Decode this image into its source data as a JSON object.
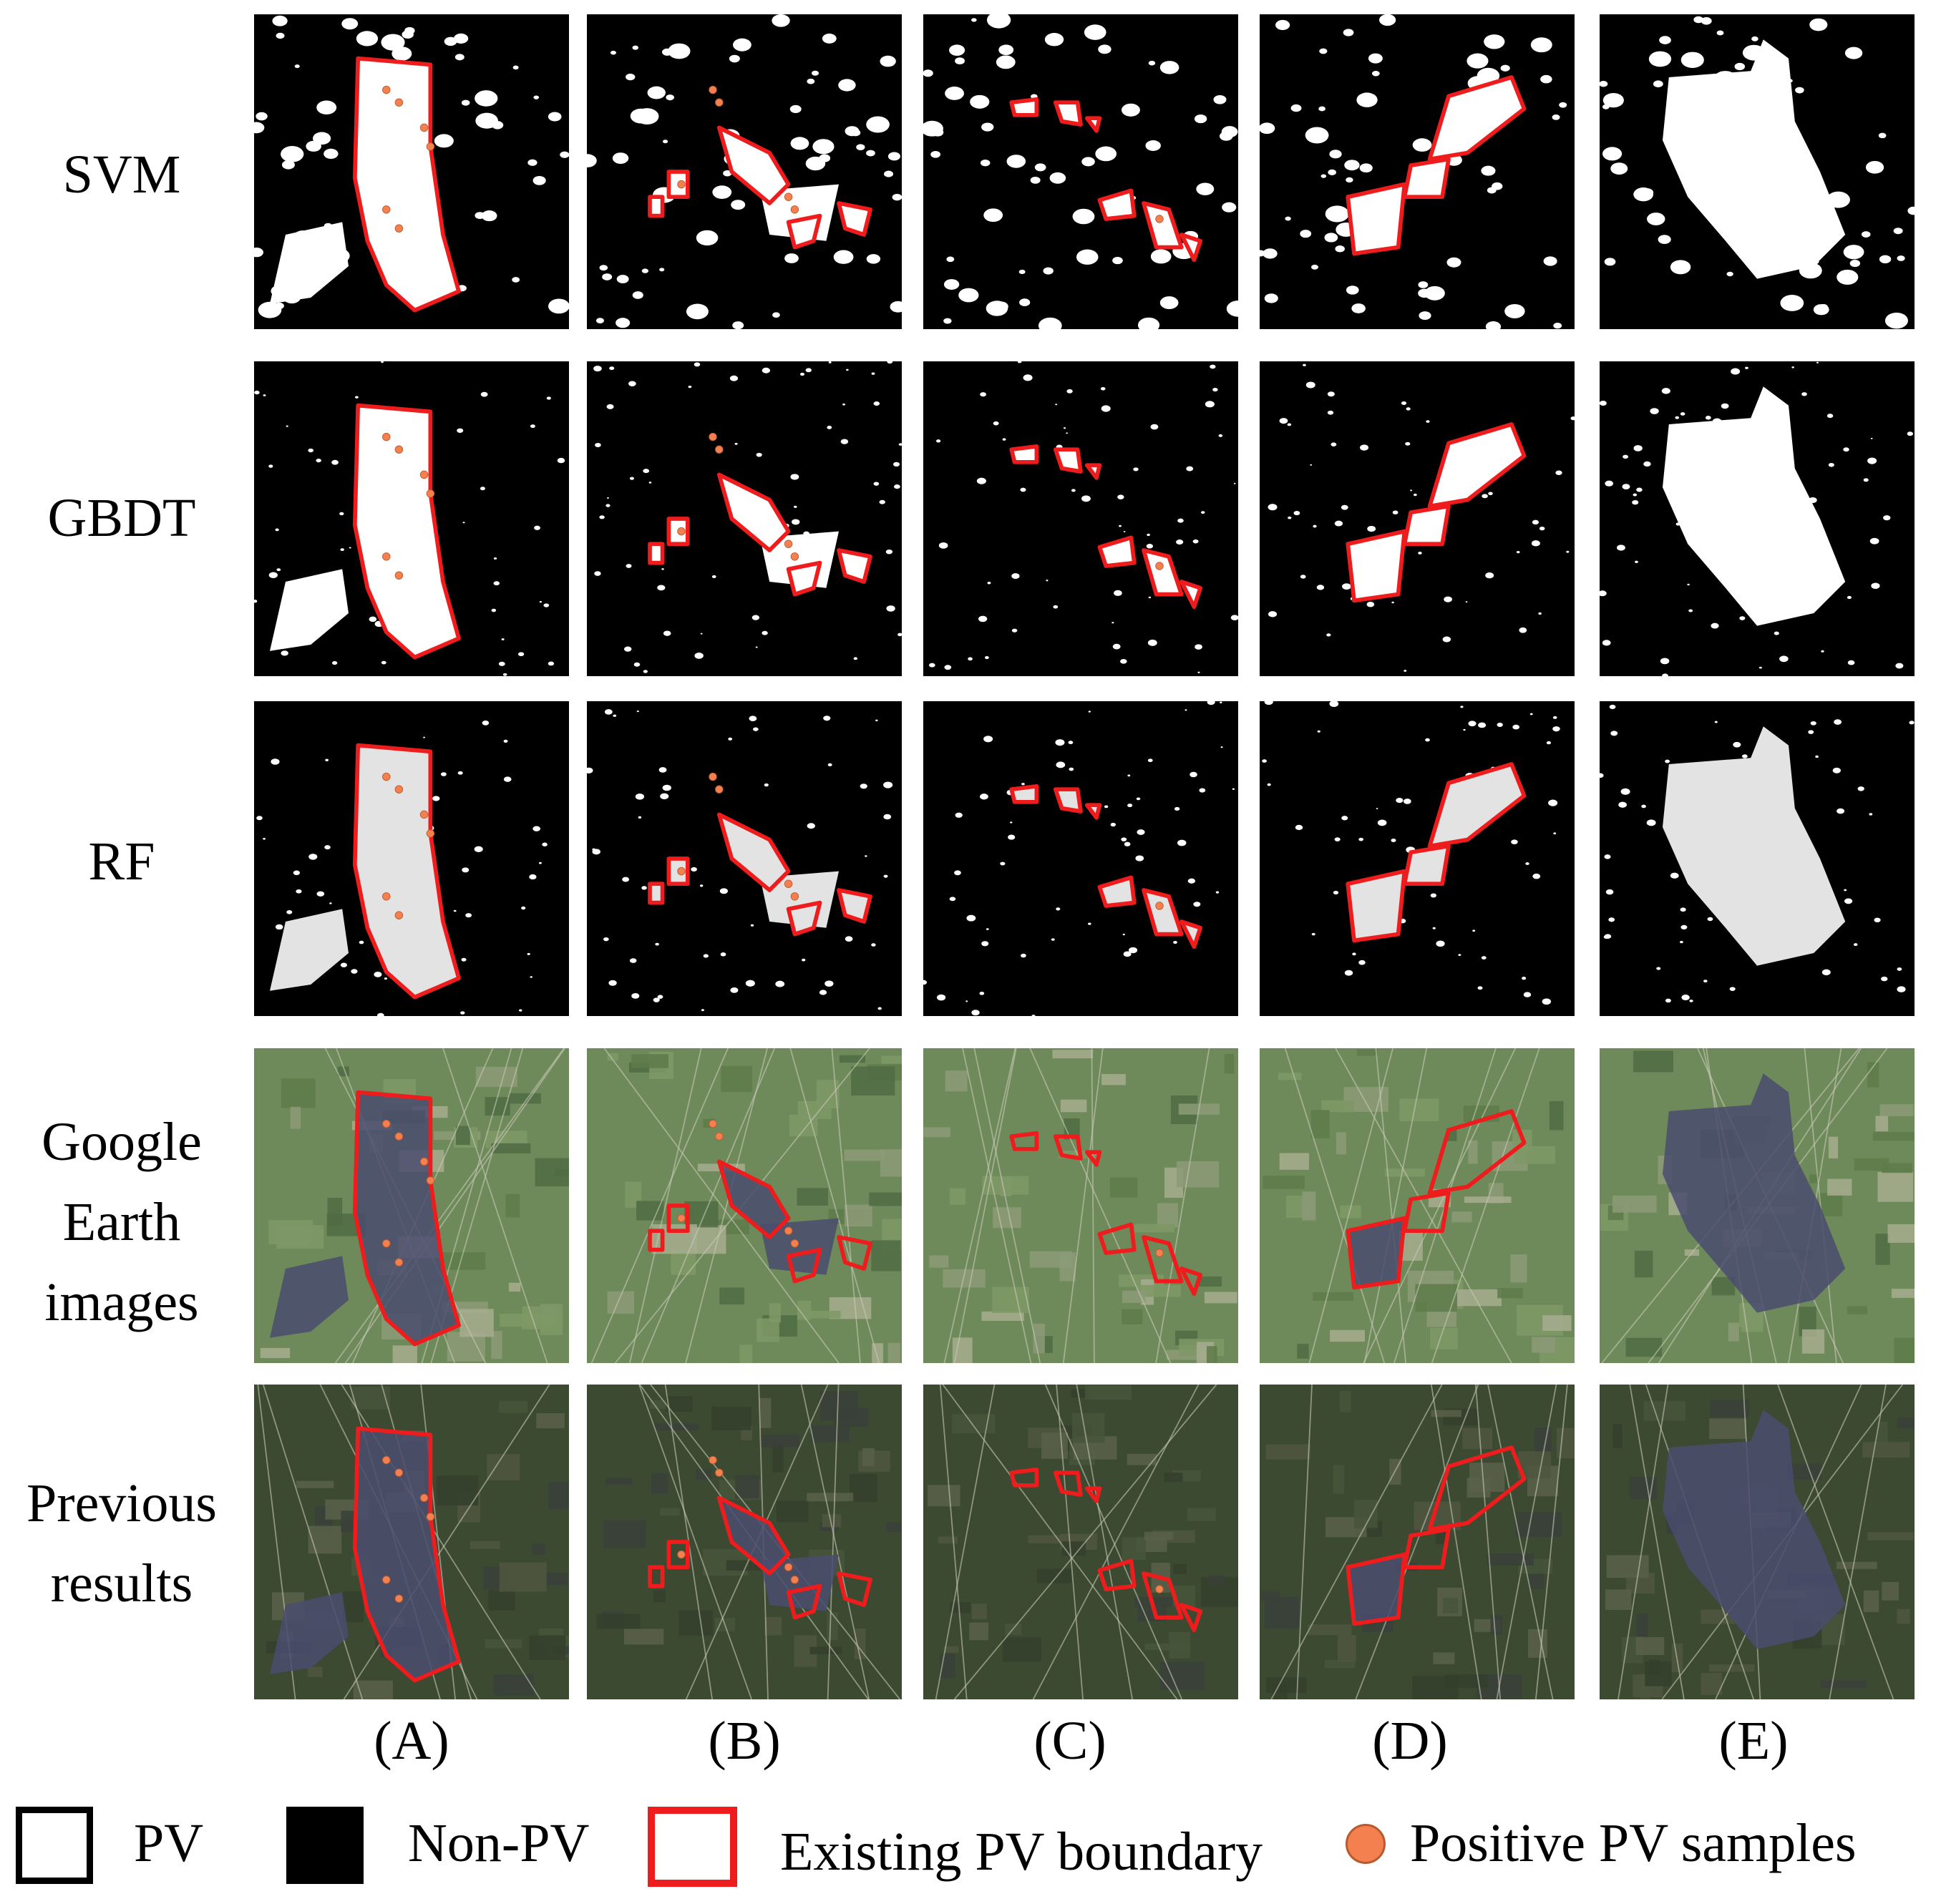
{
  "rows": [
    {
      "id": "svm",
      "label_lines": [
        "SVM"
      ]
    },
    {
      "id": "gbdt",
      "label_lines": [
        "GBDT"
      ]
    },
    {
      "id": "rf",
      "label_lines": [
        "RF"
      ]
    },
    {
      "id": "google",
      "label_lines": [
        "Google",
        "Earth",
        "images"
      ]
    },
    {
      "id": "previous",
      "label_lines": [
        "Previous",
        "results"
      ]
    }
  ],
  "columns": [
    "(A)",
    "(B)",
    "(C)",
    "(D)",
    "(E)"
  ],
  "legend": {
    "pv": "PV",
    "non_pv": "Non-PV",
    "boundary": "Existing PV boundary",
    "samples": "Positive PV samples"
  },
  "colors": {
    "boundary": "#ee1c1c",
    "sample": "#f47f4f",
    "pv_mask": "#ffffff",
    "pv_mask_rf": "#e3e3e3",
    "non_pv": "#000000",
    "google_bg": "#6f8a5a",
    "previous_bg": "#3c4a32"
  }
}
